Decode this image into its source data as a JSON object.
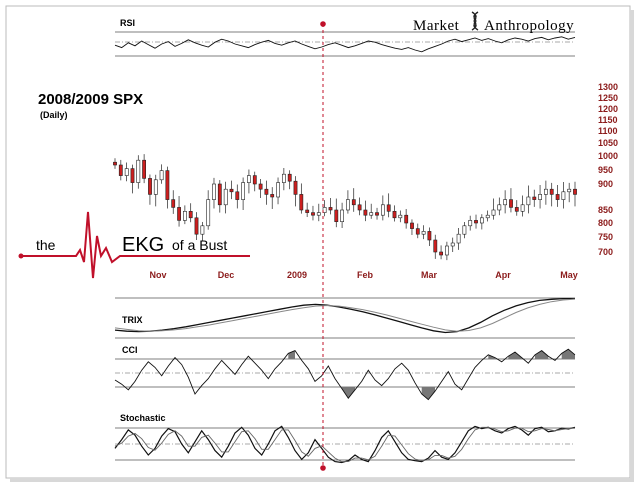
{
  "brand": {
    "word1": "Market",
    "word2": "Anthropology"
  },
  "title": "2008/2009  SPX",
  "subtitle": "(Daily)",
  "ekg": {
    "the": "the",
    "ekg": "EKG",
    "rest": "of a Bust"
  },
  "colors": {
    "up": "#ffffff",
    "down": "#cc1f1f",
    "outline": "#222222",
    "accent": "#c0102a",
    "labels": "#8b1a1a"
  },
  "chart_data": [
    {
      "type": "line",
      "panel": "RSI",
      "label": "RSI",
      "y": [
        48,
        44,
        52,
        47,
        55,
        49,
        43,
        50,
        54,
        46,
        51,
        57,
        52,
        48,
        45,
        53,
        58,
        55,
        50,
        47,
        44,
        49,
        53,
        56,
        51,
        48,
        52,
        55,
        50,
        46,
        42,
        45,
        49,
        52,
        48,
        44,
        47,
        51,
        55,
        53,
        49,
        46,
        43,
        41,
        44,
        40,
        37,
        42,
        46,
        50,
        55,
        58,
        54,
        57,
        60,
        56,
        59,
        55,
        52,
        57,
        60,
        58,
        55,
        59,
        61,
        57,
        60,
        62,
        58,
        61
      ]
    },
    {
      "type": "line",
      "panel": "SPX",
      "title": "2008/2009  SPX",
      "subtitle": "(Daily)",
      "y_ticks": [
        700,
        750,
        800,
        850,
        900,
        950,
        1000,
        1050,
        1100,
        1150,
        1200,
        1250,
        1300
      ],
      "x_labels": [
        "Nov",
        "Dec",
        "2009",
        "Feb",
        "Mar",
        "Apr",
        "May"
      ],
      "closes": [
        968,
        930,
        955,
        905,
        985,
        920,
        880,
        915,
        948,
        870,
        855,
        810,
        845,
        820,
        760,
        790,
        870,
        900,
        860,
        890,
        885,
        870,
        905,
        930,
        900,
        890,
        880,
        875,
        905,
        935,
        910,
        880,
        850,
        840,
        830,
        840,
        855,
        850,
        805,
        850,
        870,
        860,
        850,
        830,
        840,
        830,
        860,
        845,
        820,
        830,
        800,
        780,
        760,
        770,
        740,
        700,
        690,
        720,
        730,
        760,
        790,
        810,
        800,
        820,
        830,
        850,
        860,
        870,
        855,
        845,
        860,
        875,
        870,
        880,
        890,
        880,
        870,
        885,
        890,
        880
      ]
    },
    {
      "type": "line",
      "panel": "TRIX",
      "label": "TRIX",
      "series": [
        {
          "values": [
            -0.55,
            -0.6,
            -0.62,
            -0.6,
            -0.55,
            -0.48,
            -0.4,
            -0.3,
            -0.2,
            -0.1,
            0.0,
            0.1,
            0.2,
            0.3,
            0.4,
            0.5,
            0.58,
            0.62,
            0.58,
            0.5,
            0.4,
            0.28,
            0.15,
            0.0,
            -0.15,
            -0.3,
            -0.45,
            -0.58,
            -0.66,
            -0.62,
            -0.45,
            -0.2,
            0.1,
            0.35,
            0.55,
            0.7,
            0.8,
            0.85,
            0.88,
            0.88
          ]
        },
        {
          "values": [
            -0.45,
            -0.52,
            -0.58,
            -0.6,
            -0.58,
            -0.54,
            -0.48,
            -0.4,
            -0.32,
            -0.22,
            -0.12,
            -0.02,
            0.08,
            0.18,
            0.28,
            0.38,
            0.47,
            0.54,
            0.57,
            0.54,
            0.47,
            0.38,
            0.27,
            0.14,
            0.0,
            -0.14,
            -0.28,
            -0.42,
            -0.54,
            -0.6,
            -0.57,
            -0.45,
            -0.25,
            0.0,
            0.25,
            0.46,
            0.62,
            0.74,
            0.82,
            0.86
          ]
        }
      ]
    },
    {
      "type": "area",
      "panel": "CCI",
      "label": "CCI",
      "y": [
        -50,
        -80,
        -120,
        -60,
        20,
        80,
        40,
        -20,
        50,
        110,
        60,
        -30,
        -150,
        -90,
        -40,
        30,
        90,
        40,
        -10,
        60,
        120,
        70,
        20,
        -40,
        30,
        80,
        140,
        160,
        90,
        30,
        -60,
        -20,
        50,
        -40,
        -110,
        -180,
        -120,
        -60,
        20,
        -50,
        -90,
        -40,
        30,
        70,
        20,
        -70,
        -150,
        -190,
        -130,
        -60,
        10,
        -80,
        -120,
        -40,
        40,
        90,
        130,
        110,
        80,
        120,
        150,
        110,
        70,
        130,
        160,
        120,
        90,
        140,
        170,
        130
      ]
    },
    {
      "type": "line",
      "panel": "Stochastic",
      "label": "Stochastic",
      "series": [
        {
          "values": [
            40,
            60,
            82,
            70,
            45,
            25,
            40,
            68,
            85,
            78,
            50,
            30,
            55,
            80,
            60,
            35,
            20,
            45,
            75,
            88,
            70,
            40,
            25,
            50,
            80,
            90,
            65,
            35,
            15,
            30,
            60,
            40,
            20,
            10,
            8,
            12,
            25,
            15,
            10,
            35,
            65,
            80,
            55,
            30,
            15,
            12,
            10,
            18,
            35,
            20,
            15,
            30,
            55,
            80,
            90,
            85,
            88,
            80,
            75,
            85,
            90,
            82,
            70,
            85,
            88,
            78,
            80,
            86,
            84,
            88
          ]
        },
        {
          "values": [
            45,
            52,
            68,
            74,
            62,
            42,
            36,
            52,
            72,
            80,
            68,
            45,
            45,
            65,
            70,
            52,
            32,
            32,
            55,
            78,
            80,
            62,
            38,
            38,
            60,
            82,
            82,
            58,
            32,
            22,
            40,
            46,
            32,
            18,
            10,
            10,
            18,
            18,
            14,
            22,
            45,
            70,
            68,
            48,
            28,
            16,
            12,
            14,
            24,
            24,
            18,
            22,
            38,
            62,
            82,
            88,
            88,
            84,
            78,
            80,
            86,
            86,
            78,
            80,
            85,
            83,
            80,
            83,
            85,
            86
          ]
        }
      ]
    }
  ]
}
